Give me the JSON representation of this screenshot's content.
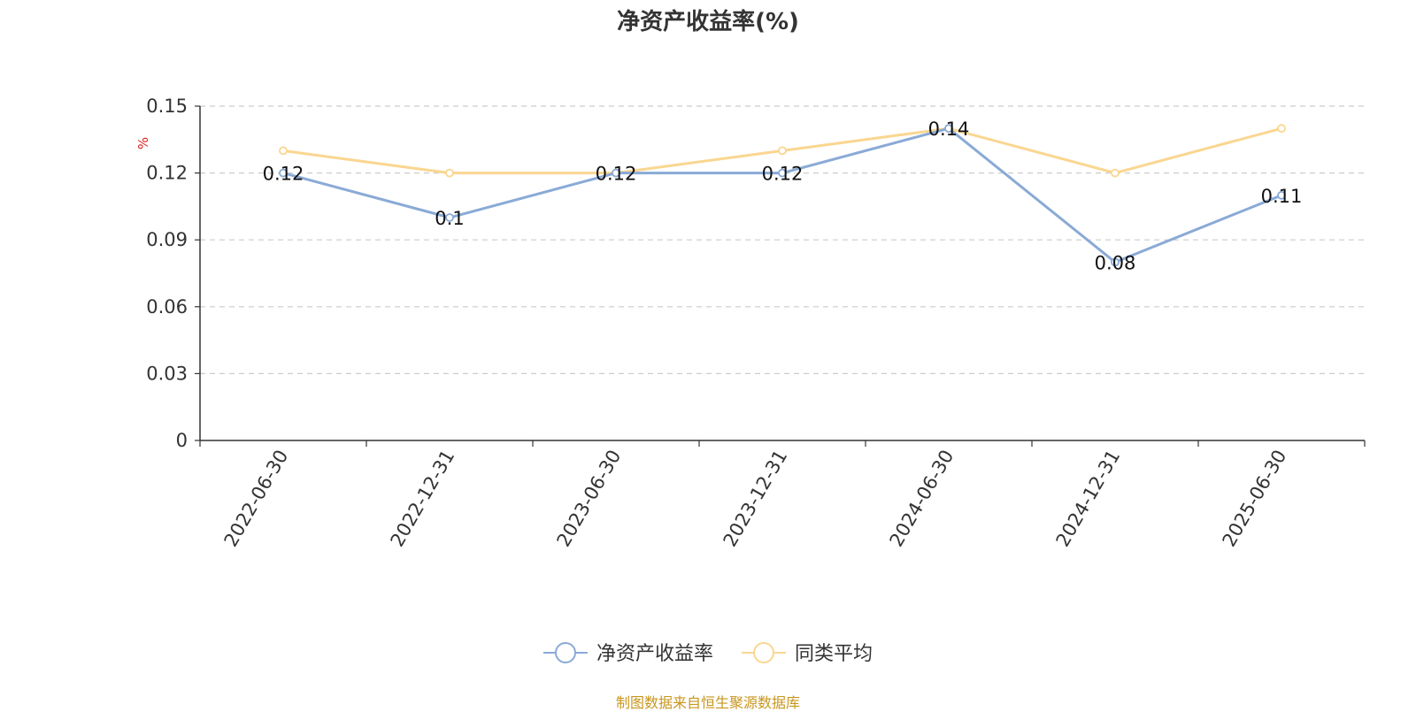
{
  "title": "净资产收益率(%)",
  "source": "制图数据来自恒生聚源数据库",
  "chart_data": {
    "type": "line",
    "title": "净资产收益率(%)",
    "ylabel": "%",
    "ylim": [
      0,
      0.15
    ],
    "yticks": [
      "0",
      "0.03",
      "0.06",
      "0.09",
      "0.12",
      "0.15"
    ],
    "grid": true,
    "legend_position": "bottom",
    "categories": [
      "2022-06-30",
      "2022-12-31",
      "2023-06-30",
      "2023-12-31",
      "2024-06-30",
      "2024-12-31",
      "2025-06-30"
    ],
    "series": [
      {
        "name": "净资产收益率",
        "color": "#8aaad6",
        "values": [
          0.12,
          0.1,
          0.12,
          0.12,
          0.14,
          0.08,
          0.11
        ],
        "labels": [
          "0.12",
          "0.1",
          "0.12",
          "0.12",
          "0.14",
          "0.08",
          "0.11"
        ]
      },
      {
        "name": "同类平均",
        "color": "#fad690",
        "values": [
          0.13,
          0.12,
          0.12,
          0.13,
          0.14,
          0.12,
          0.14
        ]
      }
    ]
  }
}
